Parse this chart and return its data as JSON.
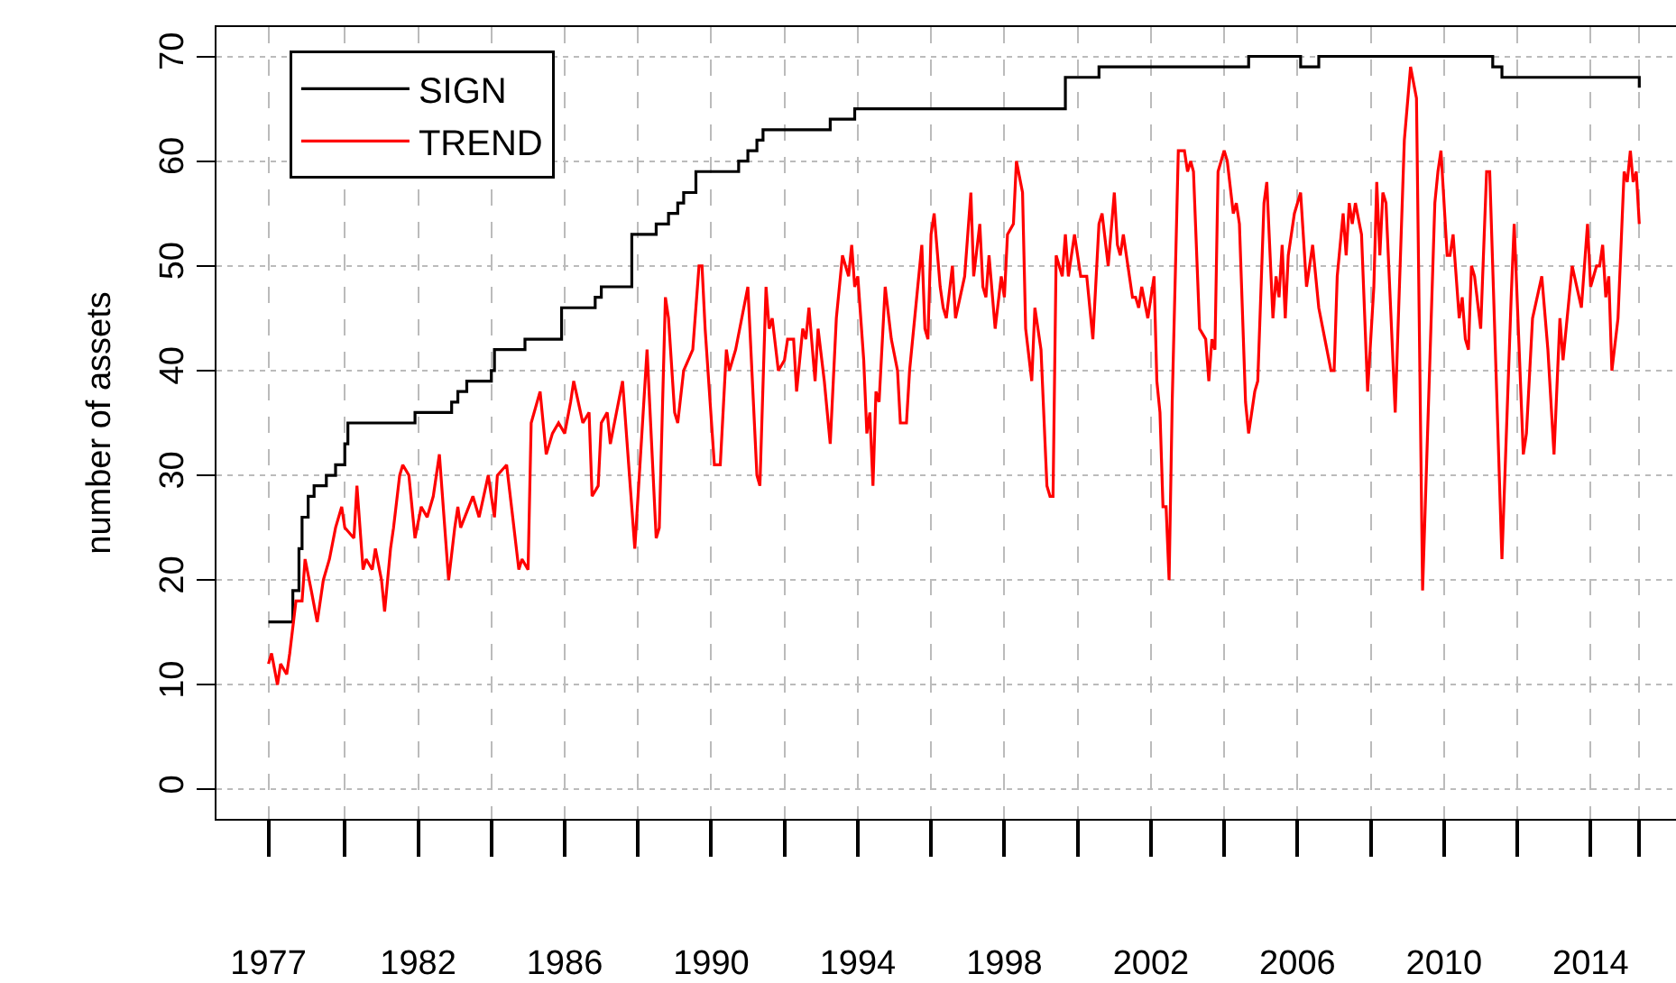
{
  "chart_data": {
    "type": "line",
    "ylabel": "number of assets",
    "xlim": [
      "1976-07",
      "2016-05"
    ],
    "ylim": [
      -2.8,
      72.8
    ],
    "xticks": [
      {
        "value": "1977-12",
        "label": "1977"
      },
      {
        "value": "1980-01",
        "label": null
      },
      {
        "value": "1982-01",
        "label": "1982"
      },
      {
        "value": "1984-01",
        "label": null
      },
      {
        "value": "1986-01",
        "label": "1986"
      },
      {
        "value": "1988-01",
        "label": null
      },
      {
        "value": "1990-01",
        "label": "1990"
      },
      {
        "value": "1992-01",
        "label": null
      },
      {
        "value": "1994-01",
        "label": "1994"
      },
      {
        "value": "1996-01",
        "label": null
      },
      {
        "value": "1998-01",
        "label": "1998"
      },
      {
        "value": "2000-01",
        "label": null
      },
      {
        "value": "2002-01",
        "label": "2002"
      },
      {
        "value": "2004-01",
        "label": null
      },
      {
        "value": "2006-01",
        "label": "2006"
      },
      {
        "value": "2008-01",
        "label": null
      },
      {
        "value": "2010-01",
        "label": "2010"
      },
      {
        "value": "2012-01",
        "label": null
      },
      {
        "value": "2014-01",
        "label": "2014"
      },
      {
        "value": "2015-05",
        "label": null
      }
    ],
    "yticks": [
      0,
      10,
      20,
      30,
      40,
      50,
      60,
      70
    ],
    "grid": true,
    "legend": "top left",
    "marker": "none",
    "line_style": "solid",
    "series": [
      {
        "name": "SIGN",
        "type": "step",
        "color": "#000000",
        "x": [
          "1977-12",
          "1978-08",
          "1978-10",
          "1978-11",
          "1979-01",
          "1979-03",
          "1979-07",
          "1979-10",
          "1980-01",
          "1980-02",
          "1981-12",
          "1982-12",
          "1983-02",
          "1983-05",
          "1984-01",
          "1984-02",
          "1984-12",
          "1985-12",
          "1986-11",
          "1987-01",
          "1987-11",
          "1988-07",
          "1988-11",
          "1989-02",
          "1989-04",
          "1989-08",
          "1990-10",
          "1991-01",
          "1991-04",
          "1991-06",
          "1993-04",
          "1993-12",
          "1999-09",
          "2000-08",
          "2004-09",
          "2006-02",
          "2006-08",
          "2011-05",
          "2011-08",
          "2015-04",
          "2015-05"
        ],
        "values": [
          16,
          19,
          23,
          26,
          28,
          29,
          30,
          31,
          33,
          35,
          36,
          37,
          38,
          39,
          40,
          42,
          43,
          46,
          47,
          48,
          53,
          54,
          55,
          56,
          57,
          59,
          60,
          61,
          62,
          63,
          64,
          65,
          68,
          69,
          70,
          69,
          70,
          69,
          68,
          68,
          67
        ]
      },
      {
        "name": "TREND",
        "color": "#ff0000",
        "x": [
          "1977-12",
          "1978-01",
          "1978-03",
          "1978-04",
          "1978-06",
          "1978-07",
          "1978-09",
          "1978-11",
          "1978-12",
          "1979-02",
          "1979-04",
          "1979-06",
          "1979-08",
          "1979-10",
          "1979-12",
          "1980-01",
          "1980-04",
          "1980-05",
          "1980-07",
          "1980-08",
          "1980-10",
          "1980-11",
          "1981-01",
          "1981-02",
          "1981-04",
          "1981-05",
          "1981-07",
          "1981-08",
          "1981-10",
          "1981-12",
          "1982-02",
          "1982-04",
          "1982-06",
          "1982-08",
          "1982-11",
          "1983-01",
          "1983-02",
          "1983-03",
          "1983-07",
          "1983-09",
          "1983-12",
          "1984-02",
          "1984-03",
          "1984-06",
          "1984-08",
          "1984-10",
          "1984-11",
          "1985-01",
          "1985-02",
          "1985-05",
          "1985-07",
          "1985-09",
          "1985-11",
          "1986-01",
          "1986-03",
          "1986-04",
          "1986-07",
          "1986-09",
          "1986-10",
          "1986-12",
          "1987-01",
          "1987-03",
          "1987-04",
          "1987-08",
          "1987-12",
          "1988-04",
          "1988-07",
          "1988-08",
          "1988-10",
          "1988-11",
          "1989-01",
          "1989-02",
          "1989-04",
          "1989-07",
          "1989-09",
          "1989-10",
          "1989-11",
          "1990-02",
          "1990-04",
          "1990-06",
          "1990-07",
          "1990-09",
          "1991-01",
          "1991-04",
          "1991-05",
          "1991-07",
          "1991-08",
          "1991-09",
          "1991-11",
          "1992-01",
          "1992-02",
          "1992-04",
          "1992-05",
          "1992-07",
          "1992-08",
          "1992-09",
          "1992-11",
          "1992-12",
          "1993-02",
          "1993-04",
          "1993-06",
          "1993-08",
          "1993-10",
          "1993-11",
          "1993-12",
          "1994-01",
          "1994-03",
          "1994-04",
          "1994-05",
          "1994-06",
          "1994-07",
          "1994-08",
          "1994-10",
          "1994-12",
          "1995-02",
          "1995-03",
          "1995-05",
          "1995-06",
          "1995-08",
          "1995-10",
          "1995-11",
          "1995-12",
          "1996-01",
          "1996-02",
          "1996-04",
          "1996-05",
          "1996-06",
          "1996-08",
          "1996-09",
          "1996-12",
          "1997-02",
          "1997-03",
          "1997-05",
          "1997-06",
          "1997-07",
          "1997-08",
          "1997-10",
          "1997-12",
          "1998-01",
          "1998-02",
          "1998-04",
          "1998-05",
          "1998-07",
          "1998-08",
          "1998-10",
          "1998-11",
          "1999-01",
          "1999-03",
          "1999-04",
          "1999-05",
          "1999-06",
          "1999-08",
          "1999-09",
          "1999-10",
          "1999-12",
          "2000-02",
          "2000-04",
          "2000-06",
          "2000-08",
          "2000-09",
          "2000-11",
          "2001-01",
          "2001-02",
          "2001-03",
          "2001-04",
          "2001-07",
          "2001-08",
          "2001-09",
          "2001-10",
          "2001-12",
          "2002-02",
          "2002-03",
          "2002-04",
          "2002-05",
          "2002-06",
          "2002-07",
          "2002-08",
          "2002-10",
          "2002-12",
          "2003-01",
          "2003-02",
          "2003-03",
          "2003-05",
          "2003-07",
          "2003-08",
          "2003-09",
          "2003-10",
          "2003-11",
          "2004-01",
          "2004-02",
          "2004-04",
          "2004-05",
          "2004-06",
          "2004-08",
          "2004-09",
          "2004-11",
          "2004-12",
          "2005-02",
          "2005-03",
          "2005-05",
          "2005-06",
          "2005-07",
          "2005-08",
          "2005-09",
          "2005-10",
          "2005-12",
          "2006-02",
          "2006-04",
          "2006-06",
          "2006-08",
          "2006-10",
          "2006-12",
          "2007-01",
          "2007-02",
          "2007-04",
          "2007-05",
          "2007-06",
          "2007-07",
          "2007-08",
          "2007-10",
          "2007-12",
          "2008-02",
          "2008-03",
          "2008-04",
          "2008-05",
          "2008-06",
          "2008-09",
          "2008-12",
          "2009-02",
          "2009-04",
          "2009-06",
          "2009-10",
          "2009-11",
          "2009-12",
          "2010-02",
          "2010-03",
          "2010-04",
          "2010-06",
          "2010-07",
          "2010-08",
          "2010-09",
          "2010-10",
          "2010-11",
          "2011-01",
          "2011-03",
          "2011-04",
          "2011-08",
          "2011-11",
          "2011-12",
          "2012-03",
          "2012-04",
          "2012-06",
          "2012-09",
          "2012-11",
          "2013-01",
          "2013-03",
          "2013-04",
          "2013-06",
          "2013-07",
          "2013-10",
          "2013-12",
          "2014-01",
          "2014-03",
          "2014-04",
          "2014-05",
          "2014-06",
          "2014-07",
          "2014-08",
          "2014-10",
          "2014-12",
          "2015-01",
          "2015-02",
          "2015-03",
          "2015-04",
          "2015-05"
        ],
        "values": [
          12,
          13,
          10,
          12,
          11,
          13,
          18,
          18,
          22,
          19,
          16,
          20,
          22,
          25,
          27,
          25,
          24,
          29,
          21,
          22,
          21,
          23,
          20,
          17,
          23,
          25,
          30,
          31,
          30,
          24,
          27,
          26,
          28,
          32,
          20,
          25,
          27,
          25,
          28,
          26,
          30,
          26,
          30,
          31,
          26,
          21,
          22,
          21,
          35,
          38,
          32,
          34,
          35,
          34,
          37,
          39,
          35,
          36,
          28,
          29,
          35,
          36,
          33,
          39,
          23,
          42,
          24,
          25,
          47,
          45,
          36,
          35,
          40,
          42,
          50,
          50,
          44,
          31,
          31,
          42,
          40,
          42,
          48,
          30,
          29,
          48,
          44,
          45,
          40,
          41,
          43,
          43,
          38,
          44,
          43,
          46,
          39,
          44,
          39,
          33,
          45,
          51,
          49,
          52,
          48,
          49,
          41,
          34,
          36,
          29,
          38,
          37,
          48,
          43,
          40,
          35,
          35,
          40,
          46,
          52,
          44,
          43,
          53,
          55,
          48,
          46,
          45,
          50,
          45,
          49,
          57,
          49,
          54,
          48,
          47,
          51,
          44,
          49,
          47,
          53,
          54,
          60,
          57,
          44,
          39,
          46,
          42,
          29,
          28,
          28,
          51,
          49,
          53,
          49,
          53,
          49,
          49,
          43,
          54,
          55,
          50,
          57,
          52,
          51,
          53,
          47,
          47,
          46,
          48,
          45,
          49,
          39,
          36,
          27,
          27,
          20,
          37,
          61,
          61,
          59,
          60,
          59,
          44,
          43,
          39,
          43,
          42,
          59,
          61,
          60,
          55,
          56,
          54,
          37,
          34,
          38,
          39,
          56,
          58,
          45,
          49,
          47,
          52,
          45,
          51,
          55,
          57,
          48,
          52,
          46,
          43,
          40,
          40,
          49,
          55,
          51,
          56,
          54,
          56,
          53,
          38,
          48,
          58,
          51,
          57,
          56,
          36,
          62,
          69,
          66,
          19,
          56,
          59,
          61,
          51,
          51,
          53,
          45,
          47,
          43,
          42,
          50,
          49,
          44,
          59,
          59,
          22,
          47,
          54,
          32,
          34,
          45,
          49,
          42,
          32,
          45,
          41,
          47,
          50,
          46,
          54,
          48,
          50,
          50,
          52,
          47,
          49,
          40,
          45,
          59,
          58,
          61,
          58,
          59,
          54
        ]
      }
    ]
  }
}
